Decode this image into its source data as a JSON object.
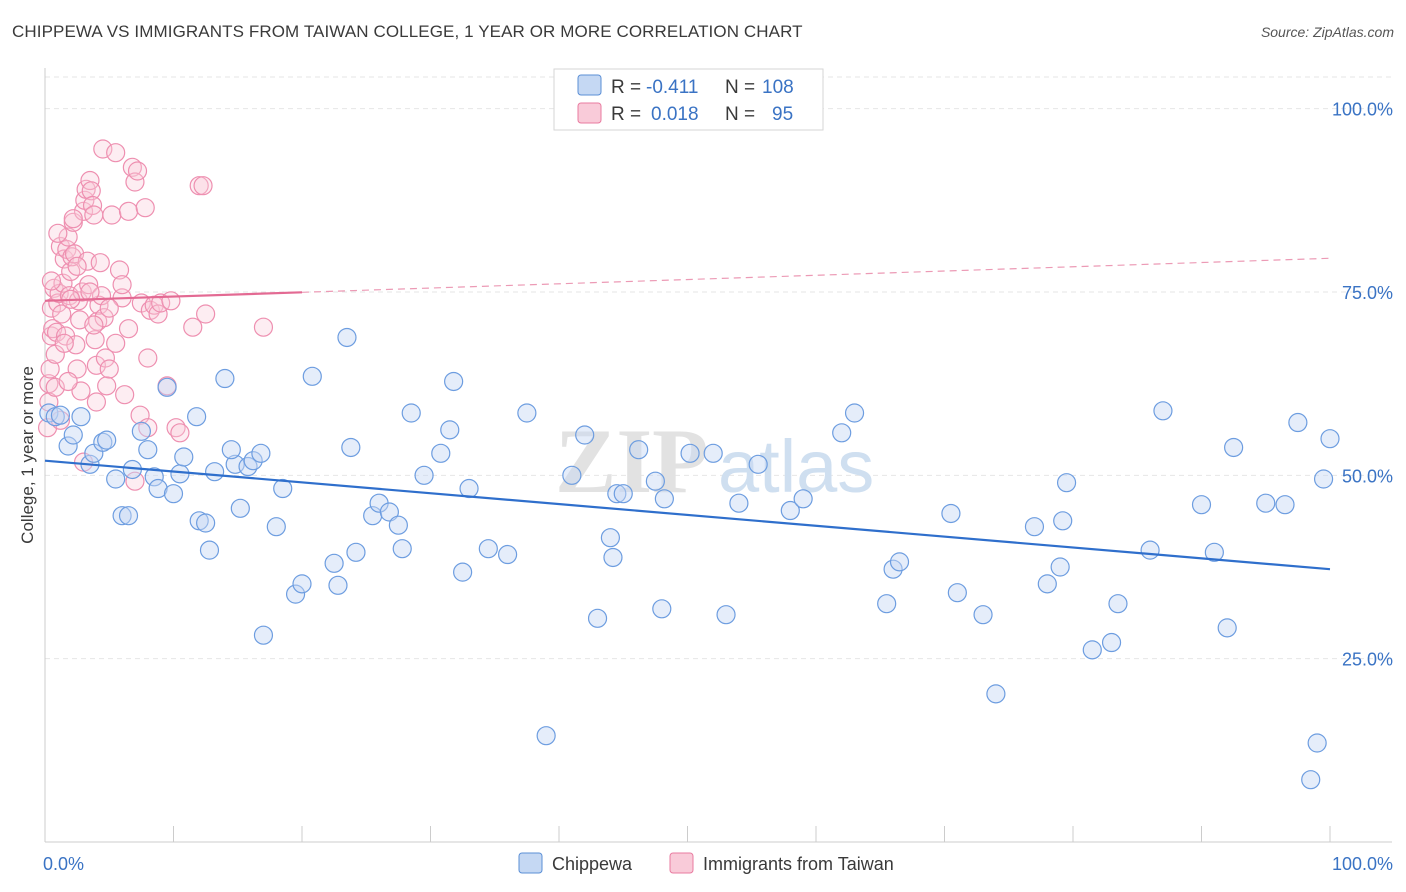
{
  "header": {
    "title": "CHIPPEWA VS IMMIGRANTS FROM TAIWAN COLLEGE, 1 YEAR OR MORE CORRELATION CHART",
    "source": "Source: ZipAtlas.com"
  },
  "watermark": {
    "zip": "ZIP",
    "atlas": "atlas"
  },
  "stats": {
    "r_label": "R =",
    "n_label": "N =",
    "rows": [
      {
        "series": "Chippewa",
        "r": "-0.411",
        "n": "108",
        "color": "#5b8fd6"
      },
      {
        "series": "Immigrants from Taiwan",
        "r": "0.018",
        "n": "95",
        "color": "#e97ba0"
      }
    ]
  },
  "legend": {
    "items": [
      {
        "label": "Chippewa",
        "color": "#5b8fd6"
      },
      {
        "label": "Immigrants from Taiwan",
        "color": "#e97ba0"
      }
    ]
  },
  "chart_data": {
    "type": "scatter",
    "title": "CHIPPEWA VS IMMIGRANTS FROM TAIWAN COLLEGE, 1 YEAR OR MORE CORRELATION CHART",
    "xlabel": "",
    "ylabel": "College, 1 year or more",
    "xlim": [
      0,
      100
    ],
    "ylim": [
      0,
      105
    ],
    "x_ticks": [
      {
        "value": 0,
        "label": "0.0%"
      },
      {
        "value": 100,
        "label": "100.0%"
      }
    ],
    "y_ticks": [
      {
        "value": 25,
        "label": "25.0%"
      },
      {
        "value": 50,
        "label": "50.0%"
      },
      {
        "value": 75,
        "label": "75.0%"
      },
      {
        "value": 100,
        "label": "100.0%"
      }
    ],
    "grid": true,
    "legend_position": "bottom-center",
    "series": [
      {
        "name": "Chippewa",
        "color": "#5b8fd6",
        "r": -0.411,
        "n": 108,
        "trend": {
          "x0": 0,
          "y0": 52.0,
          "x1": 100,
          "y1": 37.2
        },
        "points": [
          [
            0.3,
            58.5
          ],
          [
            0.8,
            58.0
          ],
          [
            1.2,
            58.2
          ],
          [
            1.8,
            54.0
          ],
          [
            2.2,
            55.5
          ],
          [
            2.8,
            58.0
          ],
          [
            3.5,
            51.5
          ],
          [
            3.8,
            53.0
          ],
          [
            4.5,
            54.5
          ],
          [
            4.8,
            54.8
          ],
          [
            5.5,
            49.5
          ],
          [
            6.0,
            44.5
          ],
          [
            6.5,
            44.5
          ],
          [
            6.8,
            50.8
          ],
          [
            7.5,
            56.0
          ],
          [
            8.0,
            53.5
          ],
          [
            8.5,
            49.8
          ],
          [
            8.8,
            48.2
          ],
          [
            9.5,
            62.0
          ],
          [
            10.0,
            47.5
          ],
          [
            10.5,
            50.2
          ],
          [
            10.8,
            52.5
          ],
          [
            11.8,
            58.0
          ],
          [
            12.0,
            43.8
          ],
          [
            12.5,
            43.5
          ],
          [
            12.8,
            39.8
          ],
          [
            13.2,
            50.5
          ],
          [
            14.0,
            63.2
          ],
          [
            14.8,
            51.5
          ],
          [
            14.5,
            53.5
          ],
          [
            15.2,
            45.5
          ],
          [
            15.8,
            51.2
          ],
          [
            16.2,
            52.0
          ],
          [
            16.8,
            53.0
          ],
          [
            17.0,
            28.2
          ],
          [
            18.0,
            43.0
          ],
          [
            18.5,
            48.2
          ],
          [
            19.5,
            33.8
          ],
          [
            20.0,
            35.2
          ],
          [
            20.8,
            63.5
          ],
          [
            22.5,
            38.0
          ],
          [
            22.8,
            35.0
          ],
          [
            23.5,
            68.8
          ],
          [
            23.8,
            53.8
          ],
          [
            24.2,
            39.5
          ],
          [
            25.5,
            44.5
          ],
          [
            26.0,
            46.2
          ],
          [
            26.8,
            45.0
          ],
          [
            27.5,
            43.2
          ],
          [
            27.8,
            40.0
          ],
          [
            28.5,
            58.5
          ],
          [
            29.5,
            50.0
          ],
          [
            30.8,
            53.0
          ],
          [
            31.5,
            56.2
          ],
          [
            31.8,
            62.8
          ],
          [
            32.5,
            36.8
          ],
          [
            33.0,
            48.2
          ],
          [
            34.5,
            40.0
          ],
          [
            36.0,
            39.2
          ],
          [
            37.5,
            58.5
          ],
          [
            39.0,
            14.5
          ],
          [
            41.0,
            50.0
          ],
          [
            42.0,
            55.5
          ],
          [
            43.0,
            30.5
          ],
          [
            44.0,
            41.5
          ],
          [
            44.2,
            38.8
          ],
          [
            44.5,
            47.5
          ],
          [
            45.0,
            47.5
          ],
          [
            46.2,
            53.5
          ],
          [
            47.5,
            49.2
          ],
          [
            48.0,
            31.8
          ],
          [
            48.2,
            46.8
          ],
          [
            50.2,
            53.0
          ],
          [
            52.0,
            53.0
          ],
          [
            53.0,
            31.0
          ],
          [
            54.0,
            46.2
          ],
          [
            55.5,
            51.5
          ],
          [
            58.0,
            45.2
          ],
          [
            59.0,
            46.8
          ],
          [
            62.0,
            55.8
          ],
          [
            63.0,
            58.5
          ],
          [
            65.5,
            32.5
          ],
          [
            66.0,
            37.2
          ],
          [
            66.5,
            38.2
          ],
          [
            70.5,
            44.8
          ],
          [
            71.0,
            34.0
          ],
          [
            73.0,
            31.0
          ],
          [
            74.0,
            20.2
          ],
          [
            77.0,
            43.0
          ],
          [
            78.0,
            35.2
          ],
          [
            79.0,
            37.5
          ],
          [
            79.2,
            43.8
          ],
          [
            79.5,
            49.0
          ],
          [
            81.5,
            26.2
          ],
          [
            83.0,
            27.2
          ],
          [
            83.5,
            32.5
          ],
          [
            86.0,
            39.8
          ],
          [
            87.0,
            58.8
          ],
          [
            90.0,
            46.0
          ],
          [
            91.0,
            39.5
          ],
          [
            92.0,
            29.2
          ],
          [
            92.5,
            53.8
          ],
          [
            95.0,
            46.2
          ],
          [
            96.5,
            46.0
          ],
          [
            97.5,
            57.2
          ],
          [
            98.5,
            8.5
          ],
          [
            99.0,
            13.5
          ],
          [
            99.5,
            49.5
          ],
          [
            100.0,
            55.0
          ]
        ]
      },
      {
        "name": "Immigrants from Taiwan",
        "color": "#e97ba0",
        "r": 0.018,
        "n": 95,
        "trend": {
          "x0": 0,
          "y0": 73.8,
          "x1": 100,
          "y1": 79.6,
          "solid_until_x": 20
        },
        "points": [
          [
            0.2,
            56.5
          ],
          [
            0.3,
            60.0
          ],
          [
            0.3,
            62.5
          ],
          [
            0.4,
            64.5
          ],
          [
            0.5,
            69.0
          ],
          [
            0.5,
            72.8
          ],
          [
            0.6,
            70.0
          ],
          [
            0.7,
            75.5
          ],
          [
            0.8,
            62.0
          ],
          [
            0.9,
            69.5
          ],
          [
            1.0,
            73.5
          ],
          [
            1.1,
            74.8
          ],
          [
            1.2,
            81.2
          ],
          [
            1.3,
            72.0
          ],
          [
            1.4,
            76.2
          ],
          [
            1.5,
            79.5
          ],
          [
            1.6,
            69.0
          ],
          [
            1.7,
            80.8
          ],
          [
            1.8,
            82.5
          ],
          [
            1.9,
            74.5
          ],
          [
            2.0,
            77.8
          ],
          [
            2.1,
            79.8
          ],
          [
            2.2,
            84.5
          ],
          [
            2.3,
            80.2
          ],
          [
            2.4,
            67.8
          ],
          [
            2.5,
            64.5
          ],
          [
            2.6,
            73.8
          ],
          [
            2.7,
            71.2
          ],
          [
            2.8,
            61.5
          ],
          [
            2.9,
            75.0
          ],
          [
            3.0,
            86.0
          ],
          [
            3.1,
            87.5
          ],
          [
            3.2,
            89.0
          ],
          [
            3.3,
            79.2
          ],
          [
            3.4,
            76.0
          ],
          [
            3.5,
            90.2
          ],
          [
            3.6,
            88.8
          ],
          [
            3.7,
            86.8
          ],
          [
            3.8,
            85.5
          ],
          [
            3.9,
            68.5
          ],
          [
            4.0,
            65.0
          ],
          [
            4.1,
            71.0
          ],
          [
            4.2,
            73.2
          ],
          [
            4.3,
            79.0
          ],
          [
            4.4,
            74.5
          ],
          [
            4.5,
            94.5
          ],
          [
            4.6,
            71.5
          ],
          [
            4.7,
            66.0
          ],
          [
            4.8,
            62.2
          ],
          [
            5.0,
            64.5
          ],
          [
            5.2,
            85.5
          ],
          [
            5.5,
            94.0
          ],
          [
            5.8,
            78.0
          ],
          [
            6.0,
            74.2
          ],
          [
            6.2,
            61.0
          ],
          [
            6.5,
            86.0
          ],
          [
            6.8,
            92.0
          ],
          [
            7.0,
            90.0
          ],
          [
            7.2,
            91.5
          ],
          [
            7.4,
            58.2
          ],
          [
            7.5,
            73.5
          ],
          [
            7.8,
            86.5
          ],
          [
            8.0,
            56.5
          ],
          [
            8.2,
            72.5
          ],
          [
            8.5,
            73.2
          ],
          [
            8.8,
            72.0
          ],
          [
            9.0,
            73.5
          ],
          [
            9.5,
            62.2
          ],
          [
            9.8,
            73.8
          ],
          [
            10.2,
            56.5
          ],
          [
            10.5,
            55.8
          ],
          [
            11.5,
            70.2
          ],
          [
            12.0,
            89.5
          ],
          [
            12.3,
            89.5
          ],
          [
            12.5,
            72.0
          ],
          [
            17.0,
            70.2
          ],
          [
            3.0,
            51.8
          ],
          [
            1.2,
            57.5
          ],
          [
            0.8,
            66.5
          ],
          [
            1.5,
            68.0
          ],
          [
            2.0,
            74.0
          ],
          [
            2.5,
            78.5
          ],
          [
            3.5,
            75.0
          ],
          [
            4.0,
            60.0
          ],
          [
            0.5,
            76.5
          ],
          [
            1.0,
            83.0
          ],
          [
            5.5,
            68.0
          ],
          [
            6.0,
            76.0
          ],
          [
            7.0,
            49.2
          ],
          [
            2.2,
            85.0
          ],
          [
            3.8,
            70.5
          ],
          [
            5.0,
            72.8
          ],
          [
            1.8,
            62.8
          ],
          [
            6.5,
            70.0
          ],
          [
            8.0,
            66.0
          ]
        ]
      }
    ]
  }
}
